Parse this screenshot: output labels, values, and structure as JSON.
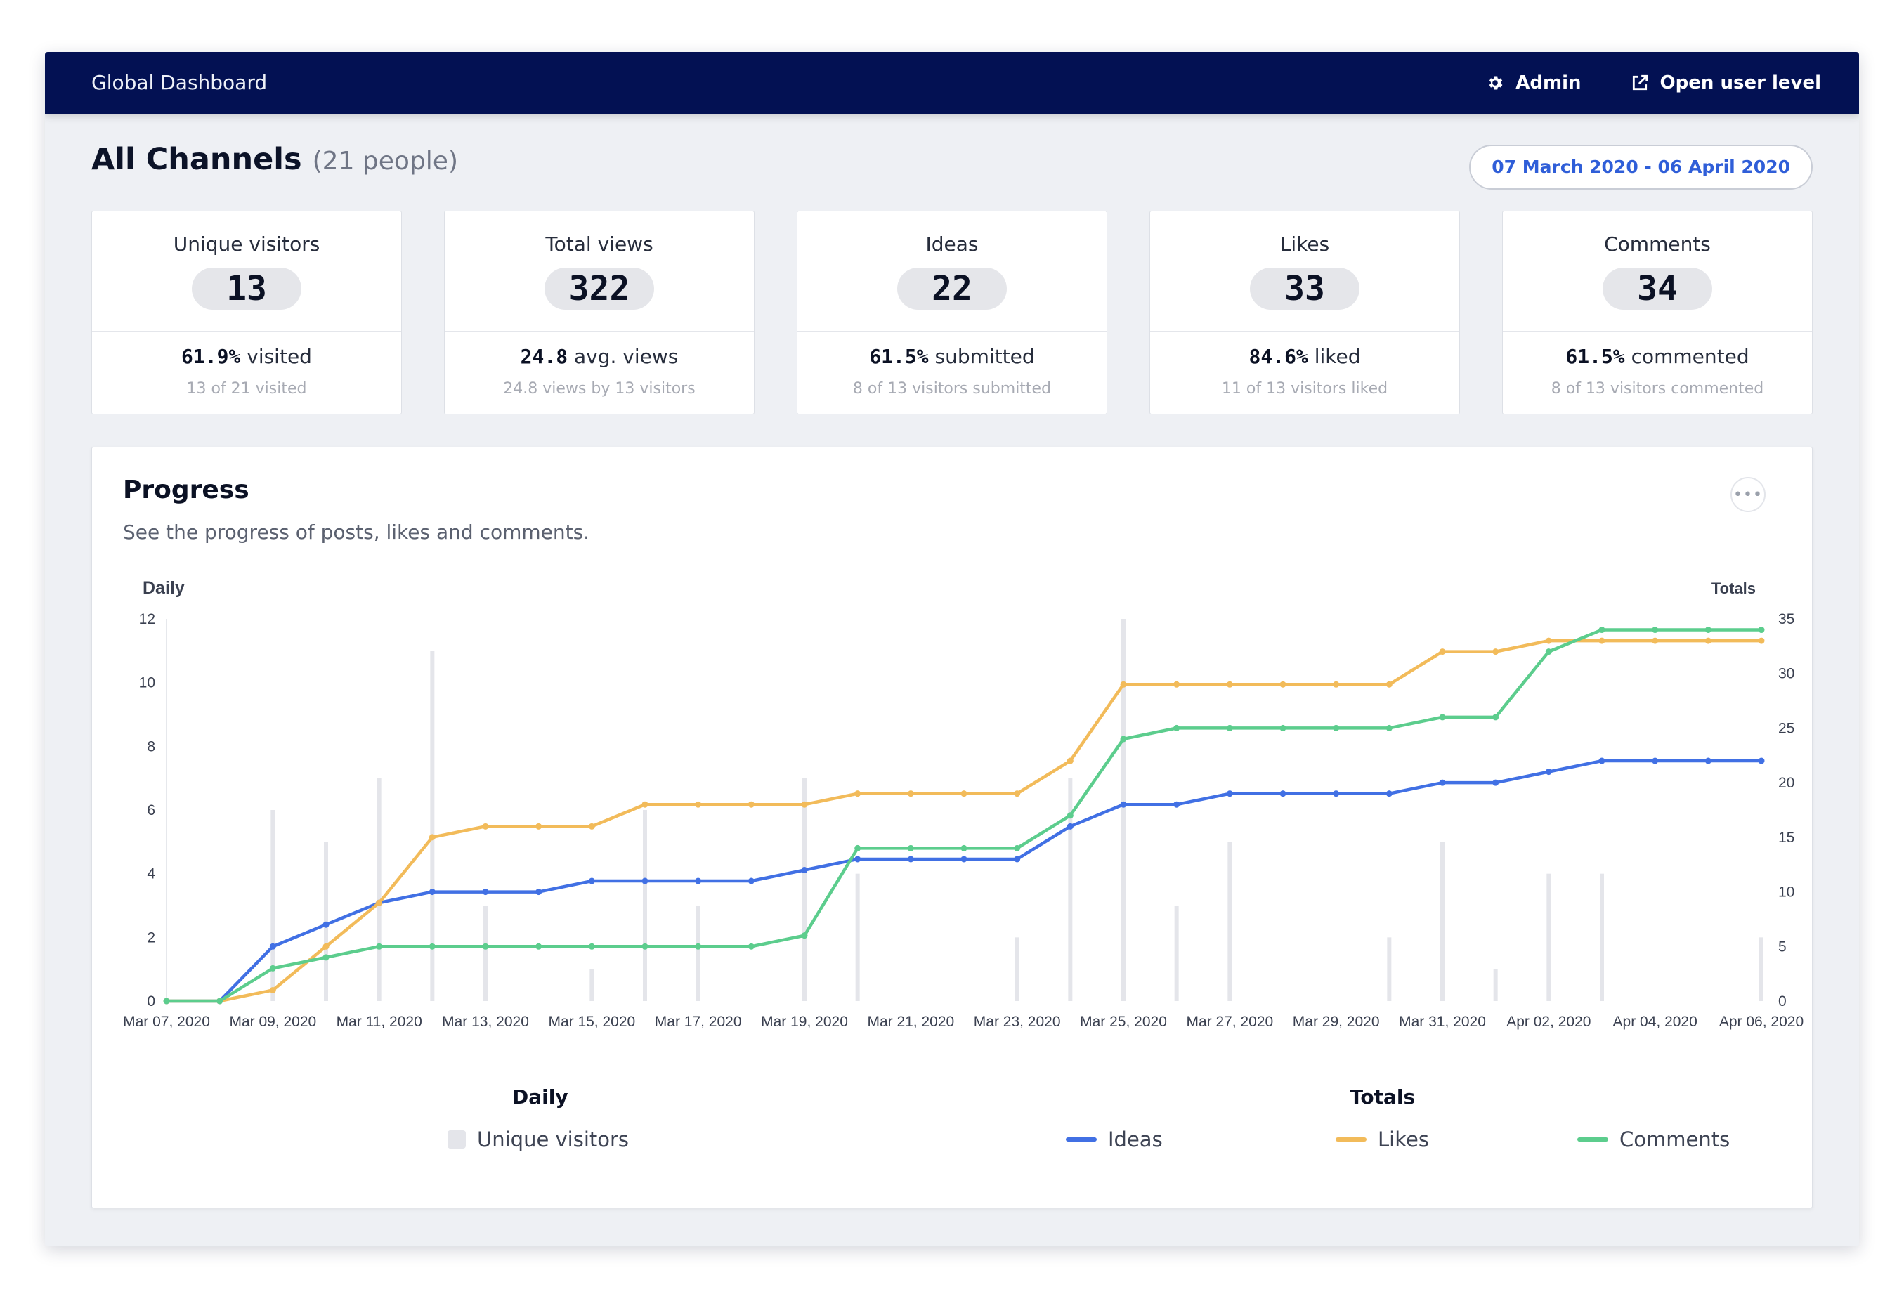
{
  "app": {
    "title": "Global Dashboard",
    "admin_label": "Admin",
    "open_user_label": "Open user level"
  },
  "header": {
    "title": "All Channels",
    "people": "(21 people)",
    "date_range": "07 March 2020 - 06 April 2020"
  },
  "stats": [
    {
      "label": "Unique visitors",
      "value": "13",
      "pct": "61.9%",
      "pct_text": " visited",
      "sub": "13 of 21 visited"
    },
    {
      "label": "Total views",
      "value": "322",
      "pct": "24.8",
      "pct_text": " avg. views",
      "sub": "24.8 views by 13 visitors"
    },
    {
      "label": "Ideas",
      "value": "22",
      "pct": "61.5%",
      "pct_text": " submitted",
      "sub": "8 of 13 visitors submitted"
    },
    {
      "label": "Likes",
      "value": "33",
      "pct": "84.6%",
      "pct_text": " liked",
      "sub": "11 of 13 visitors liked"
    },
    {
      "label": "Comments",
      "value": "34",
      "pct": "61.5%",
      "pct_text": " commented",
      "sub": "8 of 13 visitors commented"
    }
  ],
  "progress": {
    "title": "Progress",
    "subtitle": "See the progress of posts, likes and comments.",
    "more_label": "•••",
    "legend": {
      "daily_title": "Daily",
      "totals_title": "Totals",
      "unique_visitors": "Unique visitors",
      "ideas": "Ideas",
      "likes": "Likes",
      "comments": "Comments"
    }
  },
  "colors": {
    "navbar": "#031153",
    "accent": "#2f5ed8",
    "ideas": "#4170e4",
    "likes": "#f2bb5a",
    "comments": "#5ccd8d",
    "visitors": "#e4e5ea"
  },
  "chart_data": {
    "type": "line",
    "left_axis_label": "Daily",
    "right_axis_label": "Totals",
    "y_left_lim": [
      0,
      12
    ],
    "y_left_ticks": [
      0,
      2,
      4,
      6,
      8,
      10,
      12
    ],
    "y_right_lim": [
      0,
      35
    ],
    "y_right_ticks": [
      0,
      5,
      10,
      15,
      20,
      25,
      30,
      35
    ],
    "x_tick_labels": [
      "Mar 07, 2020",
      "Mar 09, 2020",
      "Mar 11, 2020",
      "Mar 13, 2020",
      "Mar 15, 2020",
      "Mar 17, 2020",
      "Mar 19, 2020",
      "Mar 21, 2020",
      "Mar 23, 2020",
      "Mar 25, 2020",
      "Mar 27, 2020",
      "Mar 29, 2020",
      "Mar 31, 2020",
      "Apr 02, 2020",
      "Apr 04, 2020",
      "Apr 06, 2020"
    ],
    "x": [
      "Mar 07",
      "Mar 08",
      "Mar 09",
      "Mar 10",
      "Mar 11",
      "Mar 12",
      "Mar 13",
      "Mar 14",
      "Mar 15",
      "Mar 16",
      "Mar 17",
      "Mar 18",
      "Mar 19",
      "Mar 20",
      "Mar 21",
      "Mar 22",
      "Mar 23",
      "Mar 24",
      "Mar 25",
      "Mar 26",
      "Mar 27",
      "Mar 28",
      "Mar 29",
      "Mar 30",
      "Mar 31",
      "Apr 01",
      "Apr 02",
      "Apr 03",
      "Apr 04",
      "Apr 05",
      "Apr 06"
    ],
    "bars": {
      "name": "Unique visitors",
      "axis": "left",
      "values": [
        0,
        0,
        6,
        5,
        7,
        11,
        3,
        0,
        1,
        6,
        3,
        0,
        7,
        4,
        0,
        0,
        2,
        7,
        12,
        3,
        5,
        0,
        0,
        2,
        5,
        1,
        4,
        4,
        0,
        0,
        2
      ]
    },
    "series": [
      {
        "name": "Ideas",
        "axis": "right",
        "values": [
          0,
          0,
          5,
          7,
          9,
          10,
          10,
          10,
          11,
          11,
          11,
          11,
          12,
          13,
          13,
          13,
          13,
          16,
          18,
          18,
          19,
          19,
          19,
          19,
          20,
          20,
          21,
          22,
          22,
          22,
          22
        ]
      },
      {
        "name": "Likes",
        "axis": "right",
        "values": [
          0,
          0,
          1,
          5,
          9,
          15,
          16,
          16,
          16,
          18,
          18,
          18,
          18,
          19,
          19,
          19,
          19,
          22,
          29,
          29,
          29,
          29,
          29,
          29,
          32,
          32,
          33,
          33,
          33,
          33,
          33
        ]
      },
      {
        "name": "Comments",
        "axis": "right",
        "values": [
          0,
          0,
          3,
          4,
          5,
          5,
          5,
          5,
          5,
          5,
          5,
          5,
          6,
          14,
          14,
          14,
          14,
          17,
          24,
          25,
          25,
          25,
          25,
          25,
          26,
          26,
          32,
          34,
          34,
          34,
          34
        ]
      }
    ]
  }
}
